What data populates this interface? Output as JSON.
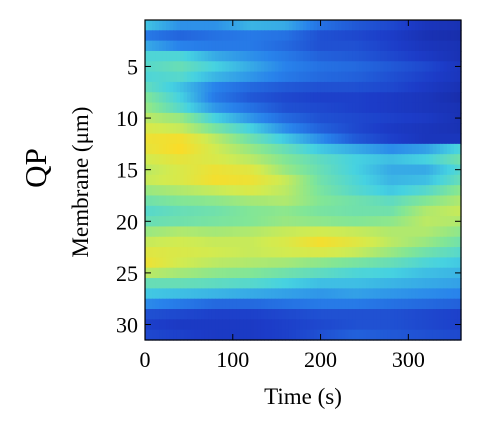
{
  "chart_data": {
    "type": "heatmap",
    "row_label": "QP",
    "xlabel": "Time (s)",
    "ylabel": "Membrane (μm)",
    "xlim": [
      0,
      360
    ],
    "ylim": [
      31.5,
      0.5
    ],
    "x_ticks": [
      0,
      100,
      200,
      300
    ],
    "y_ticks": [
      5,
      10,
      15,
      20,
      25,
      30
    ],
    "colormap": "parula",
    "colors": {
      "low": "#1a3fc8",
      "mid_low": "#2f8fe8",
      "mid": "#55dde0",
      "mid_high": "#9fe67a",
      "high": "#f6e632",
      "peak": "#e23a1a"
    },
    "time_points": [
      0,
      40,
      80,
      120,
      160,
      200,
      240,
      280,
      320,
      360
    ],
    "membrane_rows": [
      1,
      2,
      3,
      4,
      5,
      6,
      7,
      8,
      9,
      10,
      11,
      12,
      13,
      14,
      15,
      16,
      17,
      18,
      19,
      20,
      21,
      22,
      23,
      24,
      25,
      26,
      27,
      28,
      29,
      30,
      31
    ],
    "values": [
      [
        0.45,
        0.35,
        0.35,
        0.42,
        0.4,
        0.28,
        0.22,
        0.18,
        0.12,
        0.1
      ],
      [
        0.3,
        0.25,
        0.28,
        0.3,
        0.28,
        0.2,
        0.18,
        0.15,
        0.1,
        0.08
      ],
      [
        0.4,
        0.32,
        0.3,
        0.3,
        0.26,
        0.2,
        0.2,
        0.16,
        0.12,
        0.1
      ],
      [
        0.5,
        0.5,
        0.4,
        0.35,
        0.3,
        0.24,
        0.22,
        0.18,
        0.14,
        0.1
      ],
      [
        0.52,
        0.56,
        0.48,
        0.4,
        0.32,
        0.28,
        0.26,
        0.22,
        0.18,
        0.12
      ],
      [
        0.5,
        0.52,
        0.42,
        0.36,
        0.3,
        0.26,
        0.24,
        0.2,
        0.16,
        0.12
      ],
      [
        0.55,
        0.45,
        0.32,
        0.26,
        0.22,
        0.2,
        0.2,
        0.18,
        0.14,
        0.1
      ],
      [
        0.62,
        0.48,
        0.3,
        0.22,
        0.18,
        0.16,
        0.16,
        0.14,
        0.12,
        0.08
      ],
      [
        0.66,
        0.52,
        0.36,
        0.28,
        0.2,
        0.18,
        0.16,
        0.14,
        0.12,
        0.1
      ],
      [
        0.72,
        0.66,
        0.48,
        0.36,
        0.26,
        0.2,
        0.18,
        0.16,
        0.14,
        0.1
      ],
      [
        0.78,
        0.74,
        0.6,
        0.48,
        0.34,
        0.24,
        0.18,
        0.14,
        0.12,
        0.1
      ],
      [
        0.84,
        0.86,
        0.72,
        0.58,
        0.46,
        0.34,
        0.22,
        0.16,
        0.12,
        0.12
      ],
      [
        0.82,
        0.88,
        0.76,
        0.66,
        0.56,
        0.46,
        0.4,
        0.34,
        0.38,
        0.5
      ],
      [
        0.76,
        0.82,
        0.78,
        0.72,
        0.62,
        0.54,
        0.48,
        0.44,
        0.48,
        0.58
      ],
      [
        0.72,
        0.78,
        0.84,
        0.8,
        0.66,
        0.56,
        0.48,
        0.4,
        0.4,
        0.52
      ],
      [
        0.74,
        0.78,
        0.86,
        0.84,
        0.74,
        0.58,
        0.5,
        0.42,
        0.44,
        0.56
      ],
      [
        0.66,
        0.7,
        0.74,
        0.78,
        0.72,
        0.6,
        0.52,
        0.46,
        0.52,
        0.64
      ],
      [
        0.58,
        0.62,
        0.64,
        0.68,
        0.7,
        0.62,
        0.58,
        0.54,
        0.62,
        0.7
      ],
      [
        0.52,
        0.56,
        0.58,
        0.62,
        0.64,
        0.6,
        0.58,
        0.58,
        0.7,
        0.74
      ],
      [
        0.56,
        0.58,
        0.6,
        0.62,
        0.66,
        0.64,
        0.62,
        0.64,
        0.72,
        0.7
      ],
      [
        0.66,
        0.7,
        0.68,
        0.7,
        0.74,
        0.76,
        0.74,
        0.7,
        0.7,
        0.64
      ],
      [
        0.74,
        0.76,
        0.74,
        0.74,
        0.78,
        0.86,
        0.8,
        0.72,
        0.66,
        0.58
      ],
      [
        0.8,
        0.78,
        0.76,
        0.74,
        0.76,
        0.78,
        0.74,
        0.66,
        0.58,
        0.52
      ],
      [
        0.84,
        0.76,
        0.72,
        0.7,
        0.68,
        0.64,
        0.6,
        0.56,
        0.5,
        0.46
      ],
      [
        0.72,
        0.68,
        0.64,
        0.62,
        0.58,
        0.54,
        0.5,
        0.48,
        0.44,
        0.42
      ],
      [
        0.56,
        0.56,
        0.54,
        0.52,
        0.48,
        0.44,
        0.44,
        0.42,
        0.4,
        0.38
      ],
      [
        0.46,
        0.44,
        0.42,
        0.4,
        0.38,
        0.36,
        0.38,
        0.36,
        0.34,
        0.32
      ],
      [
        0.34,
        0.3,
        0.26,
        0.26,
        0.28,
        0.3,
        0.3,
        0.28,
        0.26,
        0.24
      ],
      [
        0.2,
        0.18,
        0.16,
        0.16,
        0.18,
        0.2,
        0.2,
        0.2,
        0.18,
        0.16
      ],
      [
        0.16,
        0.14,
        0.14,
        0.14,
        0.16,
        0.18,
        0.2,
        0.2,
        0.18,
        0.16
      ],
      [
        0.18,
        0.16,
        0.14,
        0.14,
        0.16,
        0.2,
        0.24,
        0.22,
        0.2,
        0.18
      ]
    ]
  }
}
